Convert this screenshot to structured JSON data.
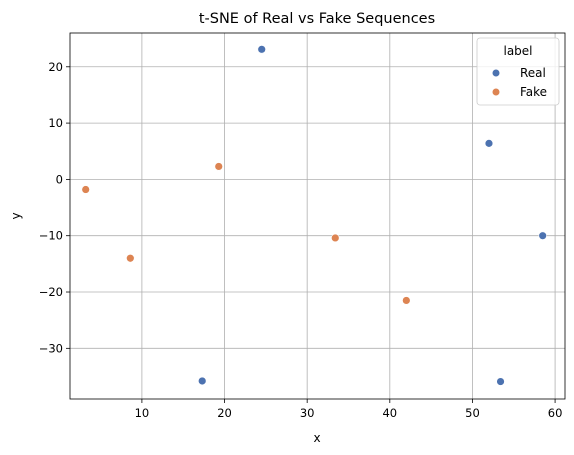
{
  "chart_data": {
    "type": "scatter",
    "title": "t-SNE of Real vs Fake Sequences",
    "xlabel": "x",
    "ylabel": "y",
    "xlim": [
      1.3,
      61.2
    ],
    "ylim": [
      -39.0,
      26.0
    ],
    "xticks": [
      10,
      20,
      30,
      40,
      50,
      60
    ],
    "yticks": [
      -30,
      -20,
      -10,
      0,
      10,
      20
    ],
    "grid": true,
    "legend": {
      "title": "label",
      "placement": "top-right"
    },
    "series": [
      {
        "name": "Real",
        "color": "#4c72b0",
        "points": [
          {
            "x": 24.5,
            "y": 23.1
          },
          {
            "x": 52.0,
            "y": 6.4
          },
          {
            "x": 58.5,
            "y": -10.0
          },
          {
            "x": 17.3,
            "y": -35.8
          },
          {
            "x": 53.4,
            "y": -35.9
          }
        ]
      },
      {
        "name": "Fake",
        "color": "#dd8452",
        "points": [
          {
            "x": 3.2,
            "y": -1.8
          },
          {
            "x": 19.3,
            "y": 2.3
          },
          {
            "x": 8.6,
            "y": -14.0
          },
          {
            "x": 33.4,
            "y": -10.4
          },
          {
            "x": 42.0,
            "y": -21.5
          }
        ]
      }
    ]
  }
}
